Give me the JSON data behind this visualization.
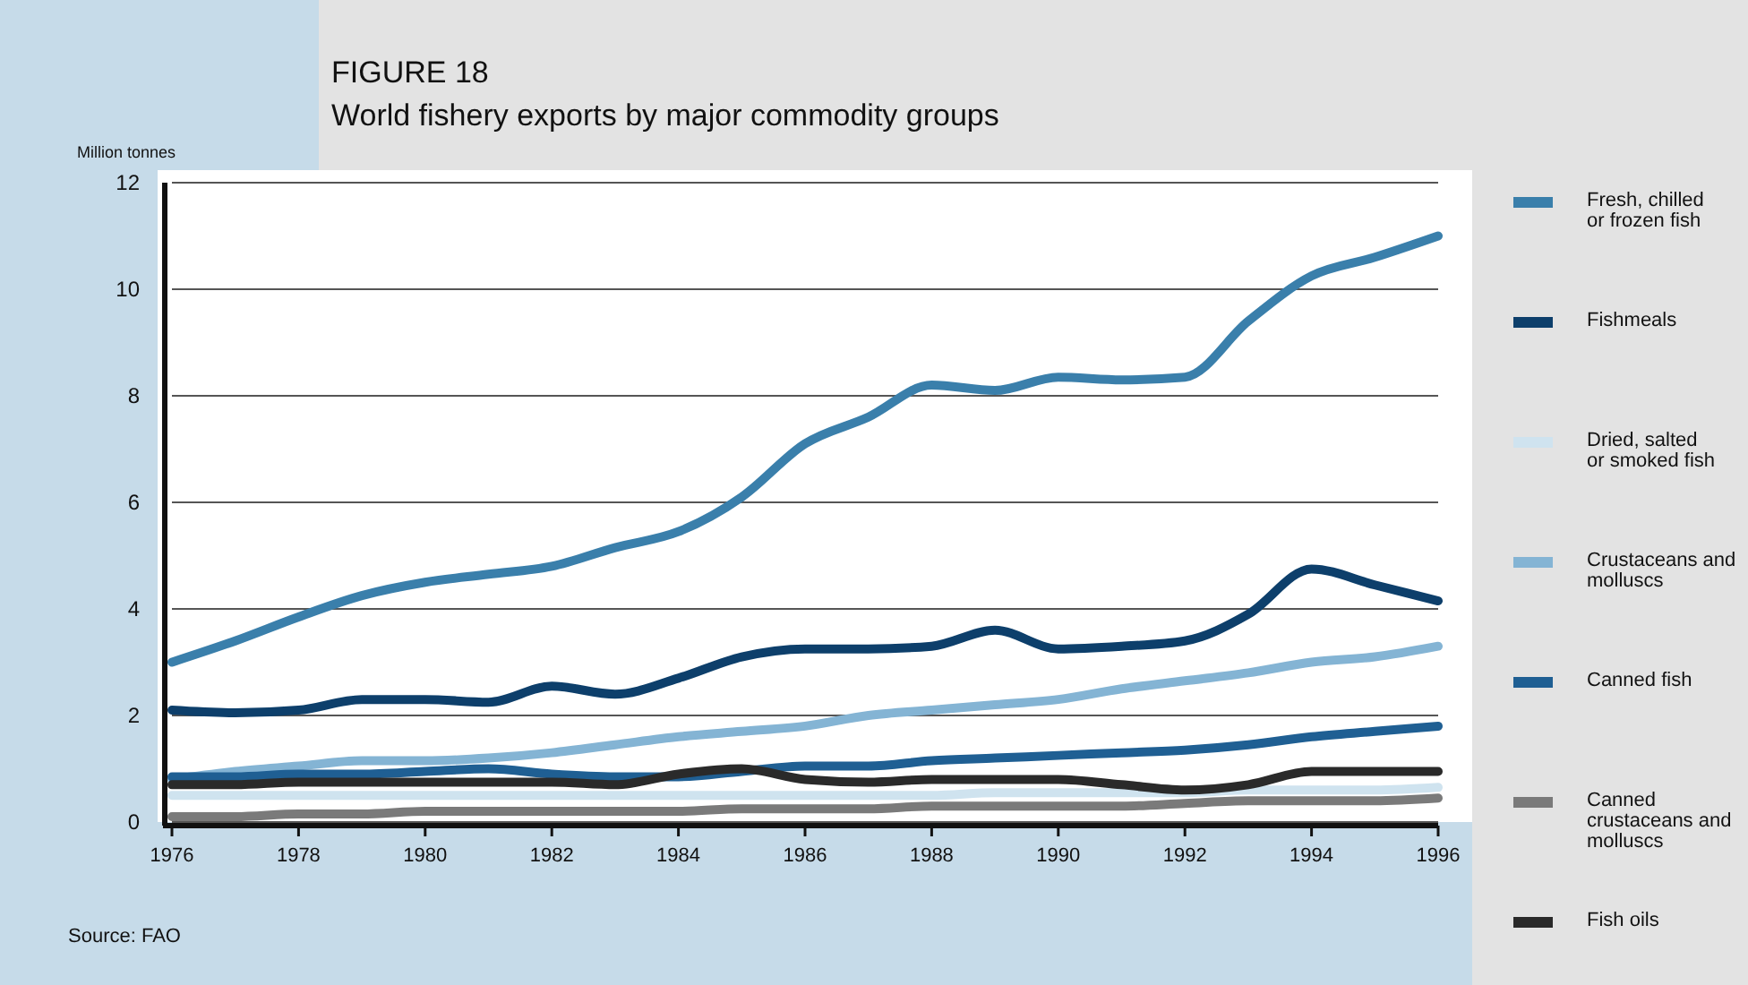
{
  "chart_data": {
    "type": "line",
    "title": "FIGURE 18",
    "subtitle": "World fishery exports by major commodity groups",
    "ylabel": "Million tonnes",
    "annotations": [
      "Source: FAO"
    ],
    "x": [
      1976,
      1977,
      1978,
      1979,
      1980,
      1981,
      1982,
      1983,
      1984,
      1985,
      1986,
      1987,
      1988,
      1989,
      1990,
      1991,
      1992,
      1993,
      1994,
      1995,
      1996
    ],
    "xlim": [
      1976,
      1996
    ],
    "xticks": [
      1976,
      1978,
      1980,
      1982,
      1984,
      1986,
      1988,
      1990,
      1992,
      1994,
      1996
    ],
    "ylim": [
      0,
      12
    ],
    "yticks": [
      0,
      2,
      4,
      6,
      8,
      10,
      12
    ],
    "grid": "y",
    "legend": "right",
    "line_style": "solid",
    "marker": "none",
    "series": [
      {
        "name": "Fresh, chilled or frozen fish",
        "color": "#3a7fab",
        "values": [
          3.0,
          3.4,
          3.85,
          4.25,
          4.5,
          4.65,
          4.8,
          5.15,
          5.45,
          6.1,
          7.1,
          7.6,
          8.2,
          8.1,
          8.35,
          8.3,
          8.35,
          9.4,
          10.25,
          10.6,
          11.0
        ]
      },
      {
        "name": "Fishmeals",
        "color": "#0d3f6b",
        "values": [
          2.1,
          2.05,
          2.1,
          2.3,
          2.3,
          2.25,
          2.55,
          2.4,
          2.7,
          3.1,
          3.25,
          3.25,
          3.3,
          3.6,
          3.25,
          3.3,
          3.4,
          3.9,
          4.75,
          4.45,
          4.15
        ]
      },
      {
        "name": "Dried, salted or smoked fish",
        "color": "#cfe3ef",
        "values": [
          0.5,
          0.5,
          0.5,
          0.5,
          0.5,
          0.5,
          0.5,
          0.5,
          0.5,
          0.5,
          0.5,
          0.5,
          0.5,
          0.55,
          0.55,
          0.55,
          0.55,
          0.6,
          0.6,
          0.6,
          0.65
        ]
      },
      {
        "name": "Crustaceans and molluscs",
        "color": "#84b4d4",
        "values": [
          0.8,
          0.95,
          1.05,
          1.15,
          1.15,
          1.2,
          1.3,
          1.45,
          1.6,
          1.7,
          1.8,
          2.0,
          2.1,
          2.2,
          2.3,
          2.5,
          2.65,
          2.8,
          3.0,
          3.1,
          3.3
        ]
      },
      {
        "name": "Canned fish",
        "color": "#1f5f93",
        "values": [
          0.85,
          0.85,
          0.9,
          0.9,
          0.95,
          1.0,
          0.9,
          0.85,
          0.85,
          0.95,
          1.05,
          1.05,
          1.15,
          1.2,
          1.25,
          1.3,
          1.35,
          1.45,
          1.6,
          1.7,
          1.8
        ]
      },
      {
        "name": "Canned crustaceans and molluscs",
        "color": "#7a7a7a",
        "values": [
          0.1,
          0.1,
          0.15,
          0.15,
          0.2,
          0.2,
          0.2,
          0.2,
          0.2,
          0.25,
          0.25,
          0.25,
          0.3,
          0.3,
          0.3,
          0.3,
          0.35,
          0.4,
          0.4,
          0.4,
          0.45
        ]
      },
      {
        "name": "Fish oils",
        "color": "#2a2a2a",
        "values": [
          0.7,
          0.7,
          0.75,
          0.75,
          0.75,
          0.75,
          0.75,
          0.7,
          0.9,
          1.0,
          0.8,
          0.75,
          0.8,
          0.8,
          0.8,
          0.7,
          0.6,
          0.7,
          0.95,
          0.95,
          0.95
        ]
      }
    ]
  }
}
